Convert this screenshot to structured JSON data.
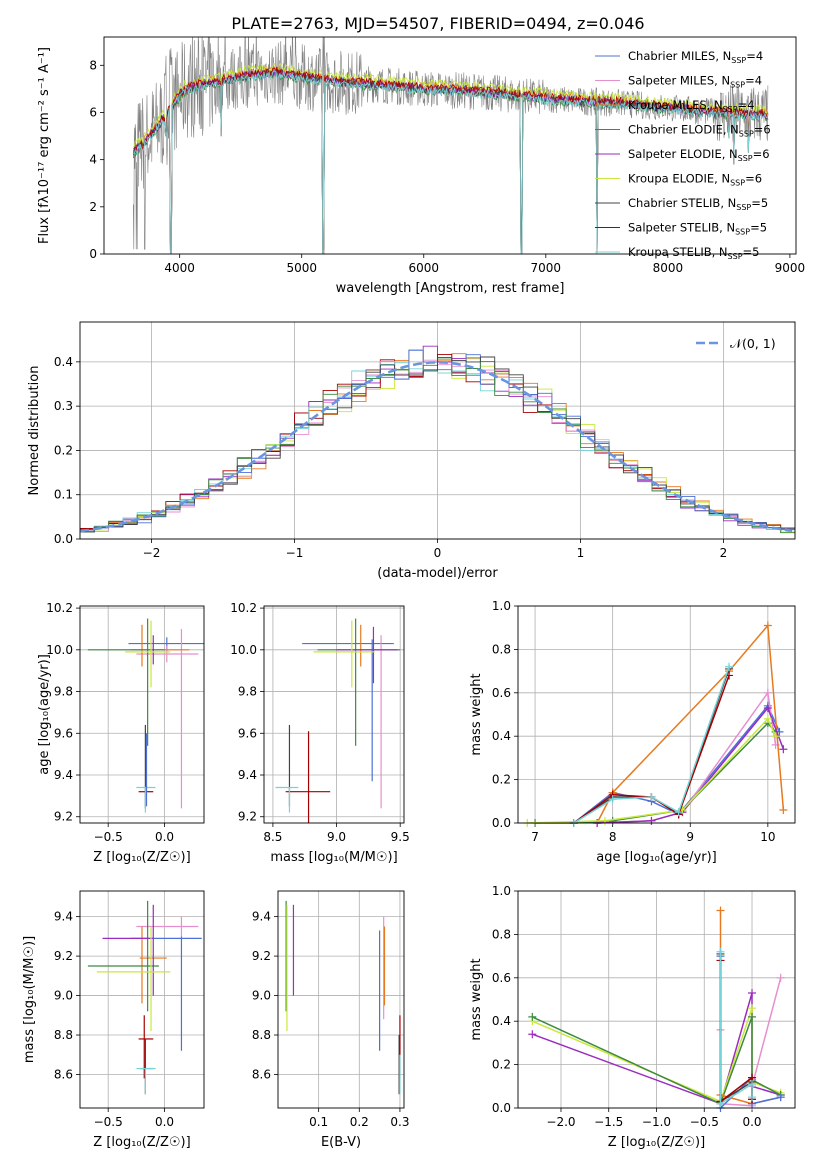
{
  "figure_title": "PLATE=2763, MJD=54507, FIBERID=0494, z=0.046",
  "colors": {
    "c1": "#4c72d8",
    "c2": "#e68fcf",
    "c3": "#e8791f",
    "c4": "#3d8a40",
    "c5": "#9a2cbf",
    "c6": "#c8e83c",
    "c7": "#444444",
    "c8": "#a60000",
    "c9": "#76d4d8",
    "data": "#808080",
    "normal": "#6a95e0"
  },
  "chart_data": [
    {
      "id": "spectrum",
      "type": "line",
      "title": "PLATE=2763, MJD=54507, FIBERID=0494, z=0.046",
      "xlabel": "wavelength [Angstrom, rest frame]",
      "ylabel": "Flux [fλ10⁻¹⁷ erg cm⁻² s⁻¹ A⁻¹]",
      "xlim": [
        3380,
        9050
      ],
      "ylim": [
        0,
        9.2
      ],
      "xticks": [
        4000,
        5000,
        6000,
        7000,
        8000,
        9000
      ],
      "yticks": [
        0,
        2,
        4,
        6,
        8
      ],
      "legend_position": "upper-right",
      "legend": [
        {
          "label": "Chabrier MILES, N",
          "sub": "SSP",
          "suffix": "=4",
          "color": "c1"
        },
        {
          "label": "Salpeter MILES, N",
          "sub": "SSP",
          "suffix": "=4",
          "color": "c2"
        },
        {
          "label": "Kroupa MILES, N",
          "sub": "SSP",
          "suffix": "=4",
          "color": "c3"
        },
        {
          "label": "Chabrier ELODIE, N",
          "sub": "SSP",
          "suffix": "=6",
          "color": "c4"
        },
        {
          "label": "Salpeter ELODIE, N",
          "sub": "SSP",
          "suffix": "=6",
          "color": "c5"
        },
        {
          "label": "Kroupa ELODIE, N",
          "sub": "SSP",
          "suffix": "=6",
          "color": "c6"
        },
        {
          "label": "Chabrier STELIB, N",
          "sub": "SSP",
          "suffix": "=5",
          "color": "c7"
        },
        {
          "label": "Salpeter STELIB, N",
          "sub": "SSP",
          "suffix": "=5",
          "color": "c8"
        },
        {
          "label": "Kroupa STELIB, N",
          "sub": "SSP",
          "suffix": "=5",
          "color": "c9"
        }
      ],
      "continuum": [
        [
          3620,
          4.3
        ],
        [
          3680,
          4.6
        ],
        [
          3760,
          5.0
        ],
        [
          3850,
          5.6
        ],
        [
          3950,
          6.4
        ],
        [
          4050,
          7.0
        ],
        [
          4200,
          7.2
        ],
        [
          4400,
          7.4
        ],
        [
          4600,
          7.6
        ],
        [
          4800,
          7.7
        ],
        [
          5000,
          7.5
        ],
        [
          5300,
          7.3
        ],
        [
          5600,
          7.2
        ],
        [
          6000,
          7.0
        ],
        [
          6400,
          6.9
        ],
        [
          6800,
          6.7
        ],
        [
          7200,
          6.5
        ],
        [
          7600,
          6.4
        ],
        [
          8000,
          6.2
        ],
        [
          8400,
          6.0
        ],
        [
          8800,
          5.9
        ]
      ],
      "absorption_dips": [
        [
          3700,
          4.4
        ],
        [
          3890,
          5.0
        ],
        [
          3930,
          0
        ],
        [
          4340,
          5.0
        ],
        [
          5175,
          0
        ],
        [
          6800,
          0
        ],
        [
          7420,
          0
        ],
        [
          8500,
          4.9
        ],
        [
          8540,
          3.8
        ],
        [
          8660,
          4.3
        ]
      ]
    },
    {
      "id": "residuals",
      "type": "line",
      "xlabel": "(data-model)/error",
      "ylabel": "Normed distribution",
      "xlim": [
        -2.5,
        2.5
      ],
      "ylim": [
        0,
        0.49
      ],
      "xticks": [
        -2,
        -1,
        0,
        1,
        2
      ],
      "yticks": [
        0.0,
        0.1,
        0.2,
        0.3,
        0.4
      ],
      "grid": true,
      "legend_position": "upper-right",
      "legend": [
        {
          "label": "𝒩(0, 1)",
          "color": "normal"
        }
      ],
      "bin_width": 0.1,
      "series": [
        {
          "name": "𝒩(0, 1)",
          "mean": 0,
          "sigma": 1
        }
      ]
    },
    {
      "id": "z_age",
      "type": "scatter",
      "xlabel": "Z [log₁₀(Z/Z☉)]",
      "ylabel": "age  [log₁₀(age/yr)]",
      "xlim": [
        -0.75,
        0.35
      ],
      "ylim": [
        9.17,
        10.21
      ],
      "xticks": [
        -0.5,
        0.0
      ],
      "yticks": [
        9.2,
        9.4,
        9.6,
        9.8,
        10.0,
        10.2
      ],
      "grid": true,
      "errorbars": [
        {
          "color": "c1",
          "x": 0.02,
          "xlo": -0.32,
          "xhi": 0.35,
          "y": 10.03,
          "ylo": 9.99,
          "yhi": 10.06
        },
        {
          "color": "c2",
          "x": 0.02,
          "xlo": -0.25,
          "xhi": 0.3,
          "y": 9.98,
          "ylo": 9.94,
          "yhi": 10.02
        },
        {
          "color": "c2",
          "x": 0.15,
          "xlo": 0.15,
          "xhi": 0.15,
          "y": 9.7,
          "ylo": 9.24,
          "yhi": 10.1
        },
        {
          "color": "c3",
          "x": -0.2,
          "xlo": -0.2,
          "xhi": -0.2,
          "y": 10.0,
          "ylo": 9.92,
          "yhi": 10.12
        },
        {
          "color": "c3",
          "x": -0.05,
          "xlo": -0.3,
          "xhi": 0.22,
          "y": 10.0,
          "ylo": 10.0,
          "yhi": 10.0
        },
        {
          "color": "c4",
          "x": -0.15,
          "xlo": -0.68,
          "xhi": 0.0,
          "y": 10.0,
          "ylo": 9.54,
          "yhi": 10.15
        },
        {
          "color": "c5",
          "x": -0.1,
          "xlo": -0.1,
          "xhi": -0.1,
          "y": 10.0,
          "ylo": 9.93,
          "yhi": 10.07
        },
        {
          "color": "c6",
          "x": -0.12,
          "xlo": -0.35,
          "xhi": 0.05,
          "y": 9.99,
          "ylo": 9.82,
          "yhi": 10.14
        },
        {
          "color": "c7",
          "x": -0.17,
          "xlo": -0.17,
          "xhi": -0.17,
          "y": 9.45,
          "ylo": 9.24,
          "yhi": 9.64
        },
        {
          "color": "c8",
          "x": -0.18,
          "xlo": -0.23,
          "xhi": -0.1,
          "y": 9.32,
          "ylo": 9.32,
          "yhi": 9.32
        },
        {
          "color": "c9",
          "x": -0.17,
          "xlo": -0.25,
          "xhi": -0.08,
          "y": 9.34,
          "ylo": 9.22,
          "yhi": 9.34
        },
        {
          "color": "c1",
          "x": -0.16,
          "xlo": -0.16,
          "xhi": -0.16,
          "y": 9.4,
          "ylo": 9.25,
          "yhi": 9.6
        }
      ]
    },
    {
      "id": "mass_age",
      "type": "scatter",
      "xlabel": "mass [log₁₀(M/M☉)]",
      "ylabel": "",
      "xlim": [
        8.43,
        9.53
      ],
      "ylim": [
        9.17,
        10.21
      ],
      "xticks": [
        8.5,
        9.0,
        9.5
      ],
      "yticks": [
        9.2,
        9.4,
        9.6,
        9.8,
        10.0,
        10.2
      ],
      "grid": true,
      "errorbars": [
        {
          "color": "c1",
          "x": 9.05,
          "xlo": 8.73,
          "xhi": 9.45,
          "y": 10.03,
          "ylo": 10.03,
          "yhi": 10.03
        },
        {
          "color": "c1",
          "x": 9.28,
          "xlo": 9.28,
          "xhi": 9.28,
          "y": 9.7,
          "ylo": 9.37,
          "yhi": 10.05
        },
        {
          "color": "c2",
          "x": 9.35,
          "xlo": 9.35,
          "xhi": 9.35,
          "y": 9.7,
          "ylo": 9.24,
          "yhi": 10.07
        },
        {
          "color": "c3",
          "x": 9.19,
          "xlo": 9.19,
          "xhi": 9.19,
          "y": 10.0,
          "ylo": 9.92,
          "yhi": 10.12
        },
        {
          "color": "c4",
          "x": 9.15,
          "xlo": 8.85,
          "xhi": 9.5,
          "y": 10.0,
          "ylo": 9.54,
          "yhi": 10.15
        },
        {
          "color": "c5",
          "x": 9.29,
          "xlo": 9.0,
          "xhi": 9.48,
          "y": 10.0,
          "ylo": 9.84,
          "yhi": 10.11
        },
        {
          "color": "c6",
          "x": 9.12,
          "xlo": 8.82,
          "xhi": 9.3,
          "y": 9.99,
          "ylo": 9.82,
          "yhi": 10.14
        },
        {
          "color": "c7",
          "x": 8.63,
          "xlo": 8.63,
          "xhi": 8.63,
          "y": 9.45,
          "ylo": 9.25,
          "yhi": 9.64
        },
        {
          "color": "c8",
          "x": 8.78,
          "xlo": 8.6,
          "xhi": 8.95,
          "y": 9.32,
          "ylo": 9.03,
          "yhi": 9.61
        },
        {
          "color": "c9",
          "x": 8.63,
          "xlo": 8.52,
          "xhi": 8.7,
          "y": 9.34,
          "ylo": 9.22,
          "yhi": 9.34
        }
      ]
    },
    {
      "id": "age_weight",
      "type": "line",
      "xlabel": "age  [log₁₀(age/yr)]",
      "ylabel": "mass weight",
      "xlim": [
        6.78,
        10.35
      ],
      "ylim": [
        0,
        1.0
      ],
      "xticks": [
        7,
        8,
        9,
        10
      ],
      "yticks": [
        0.0,
        0.2,
        0.4,
        0.6,
        0.8,
        1.0
      ],
      "grid": true,
      "series": [
        {
          "color": "c1",
          "x": [
            7.5,
            8.0,
            8.5,
            8.85,
            10.0,
            10.15
          ],
          "y": [
            0.0,
            0.14,
            0.1,
            0.04,
            0.54,
            0.42
          ]
        },
        {
          "color": "c2",
          "x": [
            7.8,
            8.5,
            8.9,
            10.0,
            10.1
          ],
          "y": [
            0.0,
            0.01,
            0.05,
            0.6,
            0.36
          ]
        },
        {
          "color": "c3",
          "x": [
            7.8,
            8.0,
            9.5,
            10.0,
            10.2
          ],
          "y": [
            0.0,
            0.14,
            0.7,
            0.91,
            0.06
          ]
        },
        {
          "color": "c4",
          "x": [
            7.0,
            7.5,
            8.0,
            8.9,
            10.0,
            10.1
          ],
          "y": [
            0.0,
            0.0,
            0.01,
            0.06,
            0.46,
            0.42
          ]
        },
        {
          "color": "c5",
          "x": [
            7.8,
            8.5,
            8.9,
            10.0,
            10.2
          ],
          "y": [
            0.0,
            0.01,
            0.05,
            0.53,
            0.34
          ]
        },
        {
          "color": "c6",
          "x": [
            6.9,
            7.9,
            8.9,
            10.0,
            10.1
          ],
          "y": [
            0.0,
            0.01,
            0.06,
            0.48,
            0.4
          ]
        },
        {
          "color": "c7",
          "x": [
            7.5,
            8.0,
            8.5,
            8.85,
            9.5
          ],
          "y": [
            0.0,
            0.12,
            0.12,
            0.04,
            0.71
          ]
        },
        {
          "color": "c8",
          "x": [
            7.5,
            8.0,
            8.5,
            8.85,
            9.5
          ],
          "y": [
            0.0,
            0.13,
            0.12,
            0.04,
            0.68
          ]
        },
        {
          "color": "c9",
          "x": [
            7.5,
            8.0,
            8.5,
            8.85,
            9.5
          ],
          "y": [
            0.0,
            0.11,
            0.12,
            0.05,
            0.72
          ]
        }
      ]
    },
    {
      "id": "z_mass",
      "type": "scatter",
      "xlabel": "Z [log₁₀(Z/Z☉)]",
      "ylabel": "mass [log₁₀(M/M☉)]",
      "xlim": [
        -0.75,
        0.35
      ],
      "ylim": [
        8.43,
        9.53
      ],
      "xticks": [
        -0.5,
        0.0
      ],
      "yticks": [
        8.6,
        8.8,
        9.0,
        9.2,
        9.4
      ],
      "grid": true,
      "errorbars": [
        {
          "color": "c1",
          "x": 0.02,
          "xlo": -0.3,
          "xhi": 0.33,
          "y": 9.29,
          "ylo": 9.29,
          "yhi": 9.29
        },
        {
          "color": "c1",
          "x": 0.15,
          "xlo": 0.15,
          "xhi": 0.15,
          "y": 9.0,
          "ylo": 8.72,
          "yhi": 9.3
        },
        {
          "color": "c2",
          "x": 0.15,
          "xlo": -0.25,
          "xhi": 0.3,
          "y": 9.35,
          "ylo": 9.3,
          "yhi": 9.4
        },
        {
          "color": "c3",
          "x": -0.2,
          "xlo": -0.22,
          "xhi": 0.02,
          "y": 9.19,
          "ylo": 8.96,
          "yhi": 9.35
        },
        {
          "color": "c4",
          "x": -0.15,
          "xlo": -0.68,
          "xhi": -0.05,
          "y": 9.15,
          "ylo": 8.92,
          "yhi": 9.48
        },
        {
          "color": "c5",
          "x": -0.1,
          "xlo": -0.55,
          "xhi": -0.1,
          "y": 9.29,
          "ylo": 9.0,
          "yhi": 9.46
        },
        {
          "color": "c6",
          "x": -0.12,
          "xlo": -0.6,
          "xhi": 0.05,
          "y": 9.12,
          "ylo": 8.82,
          "yhi": 9.35
        },
        {
          "color": "c7",
          "x": -0.17,
          "xlo": -0.22,
          "xhi": -0.1,
          "y": 8.63,
          "ylo": 8.5,
          "yhi": 8.78
        },
        {
          "color": "c8",
          "x": -0.18,
          "xlo": -0.23,
          "xhi": -0.1,
          "y": 8.78,
          "ylo": 8.58,
          "yhi": 8.9
        },
        {
          "color": "c9",
          "x": -0.17,
          "xlo": -0.25,
          "xhi": -0.08,
          "y": 8.63,
          "ylo": 8.5,
          "yhi": 8.63
        }
      ]
    },
    {
      "id": "ebv_mass",
      "type": "scatter",
      "xlabel": "E(B-V)",
      "ylabel": "",
      "xlim": [
        0.0,
        0.31
      ],
      "ylim": [
        8.43,
        9.53
      ],
      "xticks": [
        0.1,
        0.2,
        0.3
      ],
      "yticks": [
        8.6,
        8.8,
        9.0,
        9.2,
        9.4
      ],
      "grid": true,
      "errorbars": [
        {
          "color": "c1",
          "x": 0.25,
          "ylo": 8.72,
          "yhi": 9.33
        },
        {
          "color": "c2",
          "x": 0.26,
          "ylo": 8.88,
          "yhi": 9.4
        },
        {
          "color": "c3",
          "x": 0.262,
          "ylo": 8.95,
          "yhi": 9.35
        },
        {
          "color": "c4",
          "x": 0.02,
          "ylo": 8.92,
          "yhi": 9.48
        },
        {
          "color": "c5",
          "x": 0.038,
          "ylo": 9.0,
          "yhi": 9.46
        },
        {
          "color": "c6",
          "x": 0.022,
          "ylo": 8.82,
          "yhi": 9.46
        },
        {
          "color": "c7",
          "x": 0.298,
          "ylo": 8.5,
          "yhi": 8.8
        },
        {
          "color": "c8",
          "x": 0.3,
          "ylo": 8.58,
          "yhi": 8.9
        },
        {
          "color": "c9",
          "x": 0.3,
          "ylo": 8.5,
          "yhi": 8.7
        }
      ]
    },
    {
      "id": "z_weight",
      "type": "line",
      "xlabel": "Z [log₁₀(Z/Z☉)]",
      "ylabel": "mass weight",
      "xlim": [
        -2.45,
        0.45
      ],
      "ylim": [
        0,
        1.0
      ],
      "xticks": [
        -2.0,
        -1.5,
        -1.0,
        -0.5,
        0.0
      ],
      "yticks": [
        0.0,
        0.2,
        0.4,
        0.6,
        0.8,
        1.0
      ],
      "grid": true,
      "series": [
        {
          "color": "c5",
          "x": [
            -2.3,
            -0.33,
            0.0,
            0.0,
            0.3
          ],
          "y": [
            0.34,
            0.02,
            0.53,
            0.1,
            0.06
          ]
        },
        {
          "color": "c6",
          "x": [
            -2.3,
            -0.33,
            0.0,
            0.0,
            0.3
          ],
          "y": [
            0.4,
            0.03,
            0.46,
            0.12,
            0.07
          ]
        },
        {
          "color": "c4",
          "x": [
            -2.3,
            -0.33,
            0.0,
            0.0,
            0.3
          ],
          "y": [
            0.42,
            0.02,
            0.42,
            0.13,
            0.06
          ]
        },
        {
          "color": "c3",
          "x": [
            -0.33,
            -0.33,
            0.0,
            0.3
          ],
          "y": [
            0.91,
            0.06,
            0.02,
            0.05
          ]
        },
        {
          "color": "c2",
          "x": [
            -0.33,
            -0.33,
            0.0,
            0.0,
            0.3
          ],
          "y": [
            0.36,
            0.02,
            0.01,
            0.1,
            0.6
          ]
        },
        {
          "color": "c1",
          "x": [
            -0.33,
            -0.33,
            0.0,
            0.0,
            0.3
          ],
          "y": [
            0.7,
            0.0,
            0.14,
            0.02,
            0.05
          ]
        },
        {
          "color": "c7",
          "x": [
            -0.33,
            -0.33,
            0.0,
            0.0
          ],
          "y": [
            0.71,
            0.03,
            0.12,
            0.04
          ]
        },
        {
          "color": "c8",
          "x": [
            -0.33,
            -0.33,
            0.0,
            0.0
          ],
          "y": [
            0.68,
            0.03,
            0.14,
            0.04
          ]
        },
        {
          "color": "c9",
          "x": [
            -0.33,
            -0.33,
            0.0,
            0.0
          ],
          "y": [
            0.72,
            0.02,
            0.11,
            0.05
          ]
        }
      ]
    }
  ]
}
